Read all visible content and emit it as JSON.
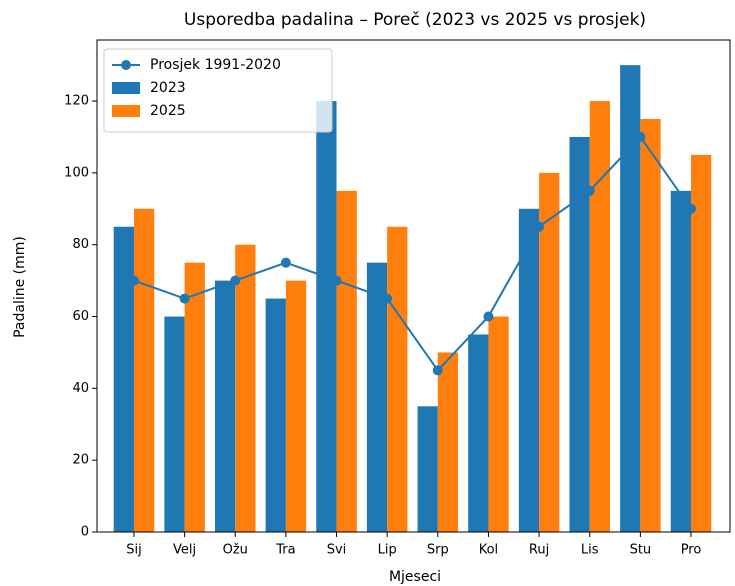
{
  "chart_data": {
    "type": "bar",
    "title": "Usporedba padalina – Poreč (2023 vs 2025 vs prosjek)",
    "x_label": "Mjeseci",
    "y_label": "Padaline (mm)",
    "categories": [
      "Sij",
      "Velj",
      "Ožu",
      "Tra",
      "Svi",
      "Lip",
      "Srp",
      "Kol",
      "Ruj",
      "Lis",
      "Stu",
      "Pro"
    ],
    "series": [
      {
        "name": "Prosjek 1991-2020",
        "type": "line",
        "color": "#1f77b4",
        "values": [
          70,
          65,
          70,
          75,
          70,
          65,
          45,
          60,
          85,
          95,
          110,
          90
        ]
      },
      {
        "name": "2023",
        "type": "bar",
        "color": "#1f77b4",
        "values": [
          85,
          60,
          70,
          65,
          120,
          75,
          35,
          55,
          90,
          110,
          130,
          95
        ]
      },
      {
        "name": "2025",
        "type": "bar",
        "color": "#ff7f0e",
        "values": [
          90,
          75,
          80,
          70,
          95,
          85,
          50,
          60,
          100,
          120,
          115,
          105
        ]
      }
    ],
    "ylim": [
      0,
      137
    ],
    "yticks": [
      0,
      20,
      40,
      60,
      80,
      100,
      120
    ],
    "legend": "upper left"
  }
}
